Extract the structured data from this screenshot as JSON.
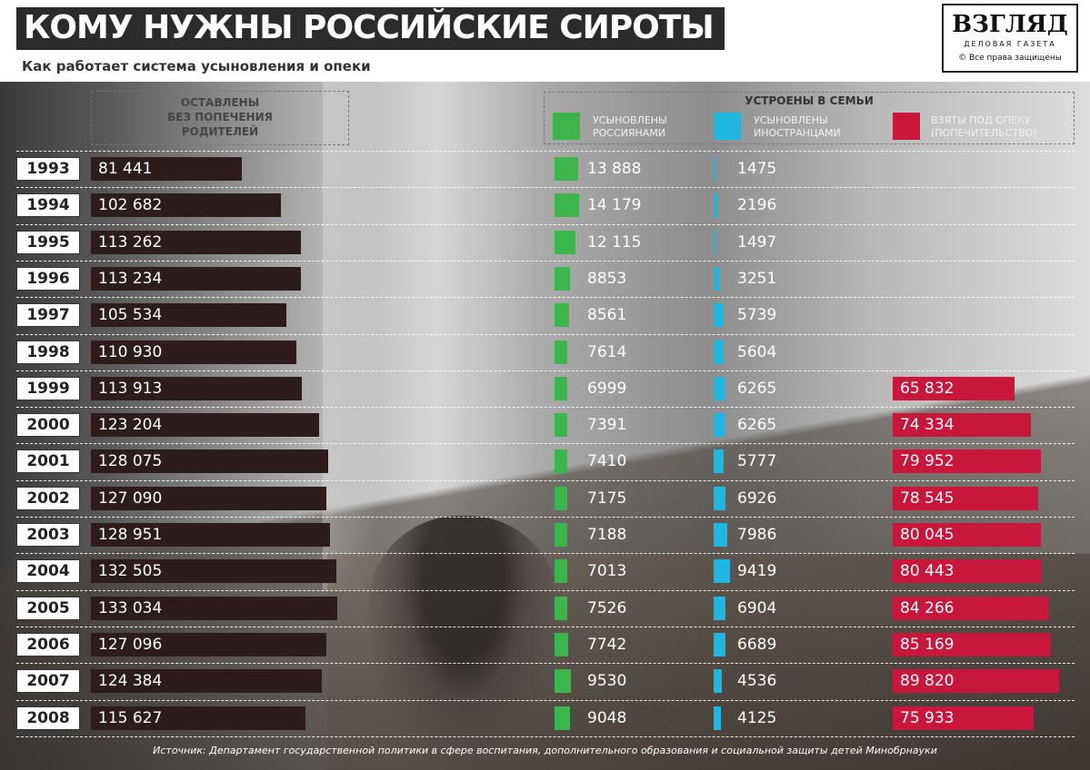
{
  "header": {
    "title": "КОМУ НУЖНЫ РОССИЙСКИЕ СИРОТЫ",
    "subtitle": "Как работает система усыновления и опеки"
  },
  "logo": {
    "name": "ВЗГЛЯД",
    "tagline": "ДЕЛОВАЯ ГАЗЕТА",
    "rights": "© Все права защищены"
  },
  "columns": {
    "left_header": "ОСТАВЛЕНЫ\nБЕЗ ПОПЕЧЕНИЯ\nРОДИТЕЛЕЙ",
    "right_header": "УСТРОЕНЫ В СЕМЬИ",
    "legend": [
      {
        "label": "УСЫНОВЛЕНЫ\nРОССИЯНАМИ",
        "color": "#3db54a"
      },
      {
        "label": "УСЫНОВЛЕНЫ\nИНОСТРАНЦАМИ",
        "color": "#1fb6e0"
      },
      {
        "label": "ВЗЯТЫ ПОД ОПЕКУ\n(ПОПЕЧИТЕЛЬСТВО)",
        "color": "#c8173a"
      }
    ]
  },
  "colors": {
    "left_of_care": "#2e1c1c",
    "adopted_russians": "#3db54a",
    "adopted_foreigners": "#1fb6e0",
    "guardianship": "#c8173a"
  },
  "chart_data": {
    "type": "bar",
    "categories": [
      "1993",
      "1994",
      "1995",
      "1996",
      "1997",
      "1998",
      "1999",
      "2000",
      "2001",
      "2002",
      "2003",
      "2004",
      "2005",
      "2006",
      "2007",
      "2008"
    ],
    "series": [
      {
        "name": "ОСТАВЛЕНЫ БЕЗ ПОПЕЧЕНИЯ РОДИТЕЛЕЙ",
        "values": [
          81441,
          102682,
          113262,
          113234,
          105534,
          110930,
          113913,
          123204,
          128075,
          127090,
          128951,
          132505,
          133034,
          127096,
          124384,
          115627
        ],
        "labels": [
          "81 441",
          "102 682",
          "113 262",
          "113 234",
          "105 534",
          "110 930",
          "113 913",
          "123 204",
          "128 075",
          "127 090",
          "128 951",
          "132 505",
          "133 034",
          "127 096",
          "124 384",
          "115 627"
        ]
      },
      {
        "name": "УСЫНОВЛЕНЫ РОССИЯНАМИ",
        "values": [
          13888,
          14179,
          12115,
          8853,
          8561,
          7614,
          6999,
          7391,
          7410,
          7175,
          7188,
          7013,
          7526,
          7742,
          9530,
          9048
        ],
        "labels": [
          "13 888",
          "14 179",
          "12 115",
          "8853",
          "8561",
          "7614",
          "6999",
          "7391",
          "7410",
          "7175",
          "7188",
          "7013",
          "7526",
          "7742",
          "9530",
          "9048"
        ]
      },
      {
        "name": "УСЫНОВЛЕНЫ ИНОСТРАНЦАМИ",
        "values": [
          1475,
          2196,
          1497,
          3251,
          5739,
          5604,
          6265,
          6265,
          5777,
          6926,
          7986,
          9419,
          6904,
          6689,
          4536,
          4125
        ],
        "labels": [
          "1475",
          "2196",
          "1497",
          "3251",
          "5739",
          "5604",
          "6265",
          "6265",
          "5777",
          "6926",
          "7986",
          "9419",
          "6904",
          "6689",
          "4536",
          "4125"
        ]
      },
      {
        "name": "ВЗЯТЫ ПОД ОПЕКУ (ПОПЕЧИТЕЛЬСТВО)",
        "values": [
          null,
          null,
          null,
          null,
          null,
          null,
          65832,
          74334,
          79952,
          78545,
          80045,
          80443,
          84266,
          85169,
          89820,
          75933
        ],
        "labels": [
          "",
          "",
          "",
          "",
          "",
          "",
          "65 832",
          "74 334",
          "79 952",
          "78 545",
          "80 045",
          "80 443",
          "84 266",
          "85 169",
          "89 820",
          "75 933"
        ]
      }
    ]
  },
  "source": "Источник: Департамент государственной политики в сфере воспитания, дополнительного образования и социальной защиты детей Минобрнауки"
}
